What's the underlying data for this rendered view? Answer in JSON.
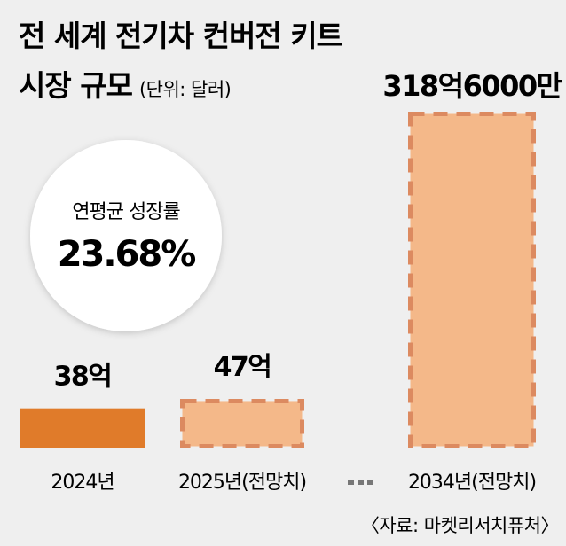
{
  "chart_data": {
    "type": "bar",
    "title_line1": "전 세계 전기차 컨버전 키트",
    "title_line2": "시장 규모",
    "unit": "(단위: 달러)",
    "categories": [
      "2024년",
      "2025년(전망치)",
      "2034년(전망치)"
    ],
    "values": [
      3800000000,
      4700000000,
      31860000000
    ],
    "value_labels": [
      "38억",
      "47억",
      "318억6000만"
    ],
    "projected": [
      false,
      true,
      true
    ],
    "axis_break_symbol": "···",
    "cagr_label": "연평균 성장률",
    "cagr_value": "23.68%",
    "source": "〈자료: 마켓리서치퓨처〉",
    "colors": {
      "actual": "#e07b2a",
      "projected_fill": "#f4b889",
      "projected_dash": "#dc8a60",
      "background": "#efefef",
      "circle": "#ffffff",
      "dots": "#777777"
    }
  }
}
